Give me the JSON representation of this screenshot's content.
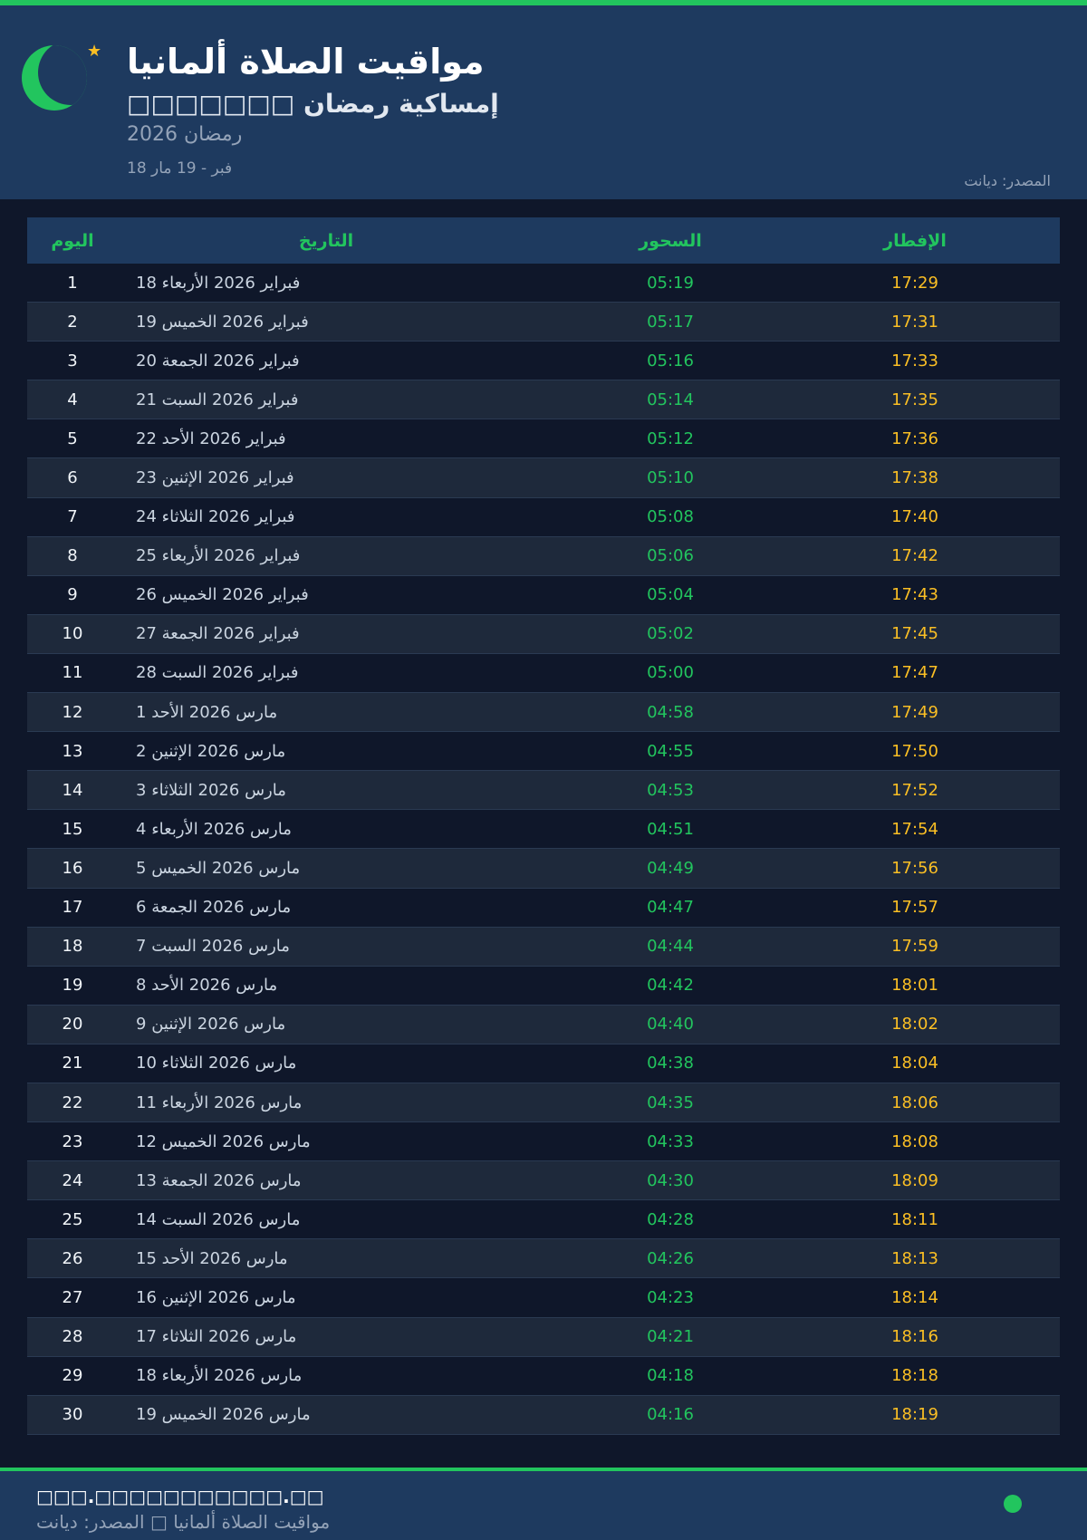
{
  "header": {
    "title": "مواقيت الصلاة ألمانيا",
    "subtitle": "□□□□□□□ إمساكية رمضان",
    "ramadan": "رمضان 2026",
    "range": "18 فبر - 19 مار",
    "source": "المصدر: ديانت"
  },
  "colors": {
    "accent": "#22c55e",
    "iftar": "#fbbf24",
    "header_bg": "#1e3a5f",
    "page_bg": "#0f172a"
  },
  "icons": {
    "logo": "crescent-moon-icon",
    "star": "star-icon",
    "status": "green-dot-icon"
  },
  "table": {
    "columns": {
      "day": "اليوم",
      "date": "التاريخ",
      "sahur": "السحور",
      "iftar": "الإفطار"
    },
    "rows": [
      {
        "day": "1",
        "date": "18 فبراير 2026 الأربعاء",
        "sahur": "05:19",
        "iftar": "17:29"
      },
      {
        "day": "2",
        "date": "19 فبراير 2026 الخميس",
        "sahur": "05:17",
        "iftar": "17:31"
      },
      {
        "day": "3",
        "date": "20 فبراير 2026 الجمعة",
        "sahur": "05:16",
        "iftar": "17:33"
      },
      {
        "day": "4",
        "date": "21 فبراير 2026 السبت",
        "sahur": "05:14",
        "iftar": "17:35"
      },
      {
        "day": "5",
        "date": "22 فبراير 2026 الأحد",
        "sahur": "05:12",
        "iftar": "17:36"
      },
      {
        "day": "6",
        "date": "23 فبراير 2026 الإثنين",
        "sahur": "05:10",
        "iftar": "17:38"
      },
      {
        "day": "7",
        "date": "24 فبراير 2026 الثلاثاء",
        "sahur": "05:08",
        "iftar": "17:40"
      },
      {
        "day": "8",
        "date": "25 فبراير 2026 الأربعاء",
        "sahur": "05:06",
        "iftar": "17:42"
      },
      {
        "day": "9",
        "date": "26 فبراير 2026 الخميس",
        "sahur": "05:04",
        "iftar": "17:43"
      },
      {
        "day": "10",
        "date": "27 فبراير 2026 الجمعة",
        "sahur": "05:02",
        "iftar": "17:45"
      },
      {
        "day": "11",
        "date": "28 فبراير 2026 السبت",
        "sahur": "05:00",
        "iftar": "17:47"
      },
      {
        "day": "12",
        "date": "1 مارس 2026 الأحد",
        "sahur": "04:58",
        "iftar": "17:49"
      },
      {
        "day": "13",
        "date": "2 مارس 2026 الإثنين",
        "sahur": "04:55",
        "iftar": "17:50"
      },
      {
        "day": "14",
        "date": "3 مارس 2026 الثلاثاء",
        "sahur": "04:53",
        "iftar": "17:52"
      },
      {
        "day": "15",
        "date": "4 مارس 2026 الأربعاء",
        "sahur": "04:51",
        "iftar": "17:54"
      },
      {
        "day": "16",
        "date": "5 مارس 2026 الخميس",
        "sahur": "04:49",
        "iftar": "17:56"
      },
      {
        "day": "17",
        "date": "6 مارس 2026 الجمعة",
        "sahur": "04:47",
        "iftar": "17:57"
      },
      {
        "day": "18",
        "date": "7 مارس 2026 السبت",
        "sahur": "04:44",
        "iftar": "17:59"
      },
      {
        "day": "19",
        "date": "8 مارس 2026 الأحد",
        "sahur": "04:42",
        "iftar": "18:01"
      },
      {
        "day": "20",
        "date": "9 مارس 2026 الإثنين",
        "sahur": "04:40",
        "iftar": "18:02"
      },
      {
        "day": "21",
        "date": "10 مارس 2026 الثلاثاء",
        "sahur": "04:38",
        "iftar": "18:04"
      },
      {
        "day": "22",
        "date": "11 مارس 2026 الأربعاء",
        "sahur": "04:35",
        "iftar": "18:06"
      },
      {
        "day": "23",
        "date": "12 مارس 2026 الخميس",
        "sahur": "04:33",
        "iftar": "18:08"
      },
      {
        "day": "24",
        "date": "13 مارس 2026 الجمعة",
        "sahur": "04:30",
        "iftar": "18:09"
      },
      {
        "day": "25",
        "date": "14 مارس 2026 السبت",
        "sahur": "04:28",
        "iftar": "18:11"
      },
      {
        "day": "26",
        "date": "15 مارس 2026 الأحد",
        "sahur": "04:26",
        "iftar": "18:13"
      },
      {
        "day": "27",
        "date": "16 مارس 2026 الإثنين",
        "sahur": "04:23",
        "iftar": "18:14"
      },
      {
        "day": "28",
        "date": "17 مارس 2026 الثلاثاء",
        "sahur": "04:21",
        "iftar": "18:16"
      },
      {
        "day": "29",
        "date": "18 مارس 2026 الأربعاء",
        "sahur": "04:18",
        "iftar": "18:18"
      },
      {
        "day": "30",
        "date": "19 مارس 2026 الخميس",
        "sahur": "04:16",
        "iftar": "18:19"
      }
    ]
  },
  "footer": {
    "site": "□□□.□□□□□□□□□□□.□□",
    "note": "مواقيت الصلاة ألمانيا □ المصدر: ديانت"
  }
}
